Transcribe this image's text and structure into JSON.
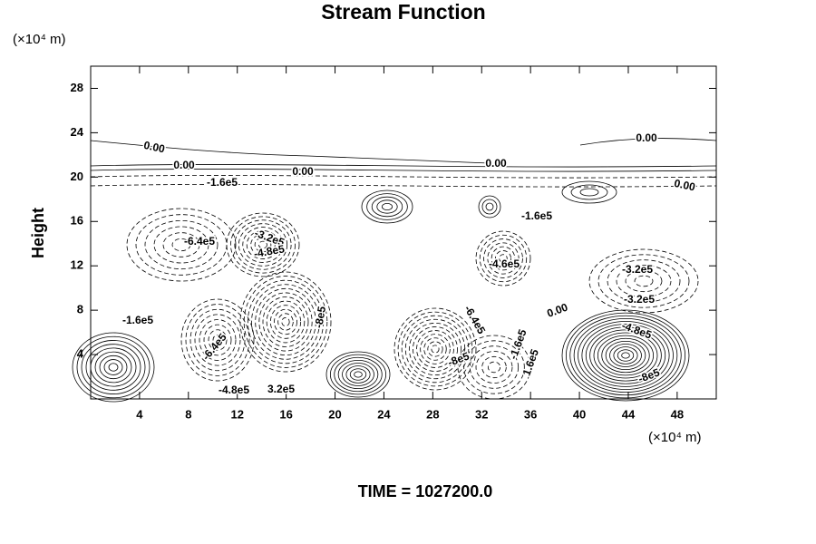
{
  "chart_data": {
    "type": "contour",
    "title": "Stream Function",
    "x_unit_label": "(×10⁴ m)",
    "y_unit_label": "(×10⁴ m)",
    "y_label": "Height",
    "footer": "TIME = 1027200.0",
    "xlim": [
      0,
      51.2
    ],
    "ylim": [
      0,
      30
    ],
    "xticks": [
      4,
      8,
      12,
      16,
      20,
      24,
      28,
      32,
      36,
      40,
      44,
      48
    ],
    "yticks": [
      4,
      8,
      12,
      16,
      20,
      24,
      28
    ],
    "contour_labels": [
      "0.00",
      "0.00",
      "0.00",
      "0.00",
      "0.00",
      "0.00",
      "0.00",
      "-1.6e5",
      "-1.6e5",
      "-1.6e5",
      "-6.4e5",
      "-3.2e5",
      "-4.8e5",
      "-4.6e5",
      "-3.2e5",
      "-3.2e5",
      "-8e5",
      "-6.4e5",
      "-6.4e5",
      "-8e5",
      "-1.6e5",
      "1.6e5",
      "-4.8e5",
      "3.2e5",
      "-4.8e5",
      "-8e5"
    ]
  }
}
